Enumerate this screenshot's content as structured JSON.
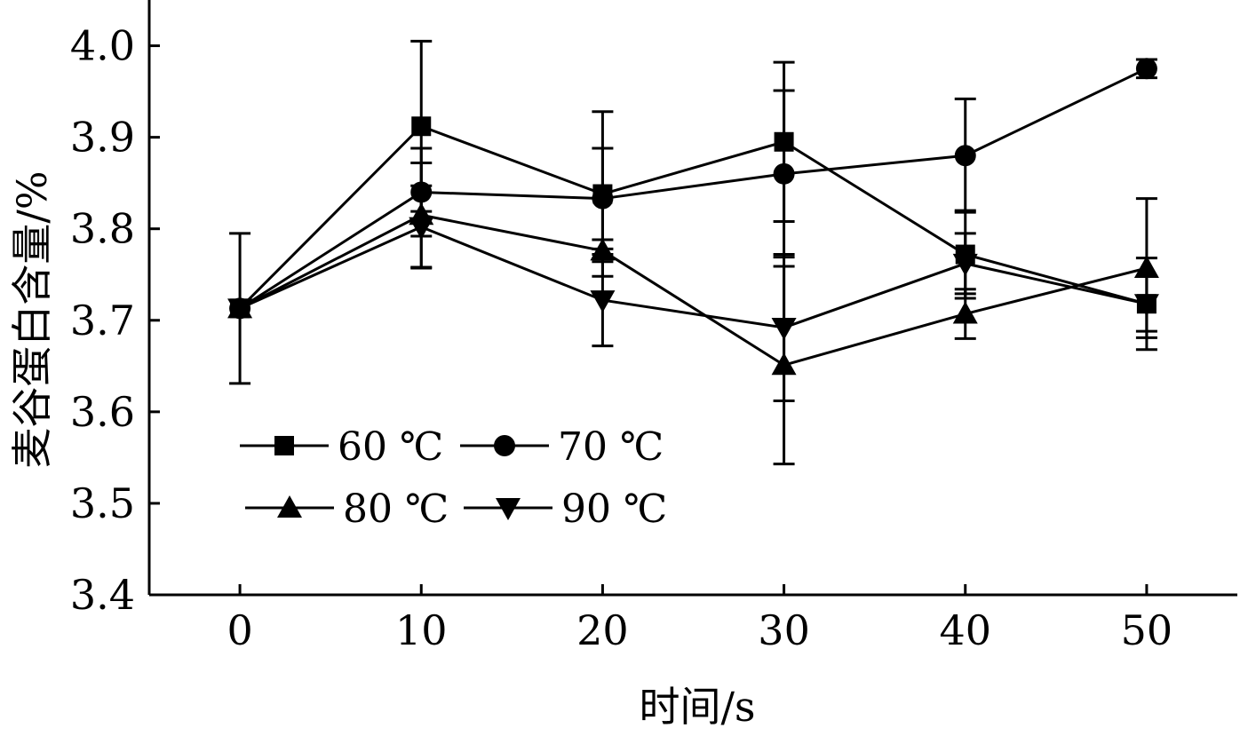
{
  "chart_data": {
    "type": "line",
    "xlabel": "时间/s",
    "ylabel": "麦谷蛋白含量/%",
    "x": [
      0,
      10,
      20,
      30,
      40,
      50
    ],
    "xlim": [
      -5,
      55
    ],
    "ylim": [
      3.4,
      4.05
    ],
    "x_ticks": [
      "0",
      "10",
      "20",
      "30",
      "40",
      "50"
    ],
    "y_ticks": [
      "3.4",
      "3.5",
      "3.6",
      "3.7",
      "3.8",
      "3.9",
      "4.0"
    ],
    "grid": false,
    "legend_position": "bottom-left, 2 rows",
    "series": [
      {
        "name": "60 ℃",
        "marker": "square",
        "color": "#000000",
        "values": [
          3.713,
          3.912,
          3.838,
          3.895,
          3.772,
          3.718
        ],
        "err": [
          0.082,
          0.093,
          0.09,
          0.087,
          0.048,
          0.03
        ]
      },
      {
        "name": "70 ℃",
        "marker": "circle",
        "color": "#000000",
        "values": [
          3.713,
          3.84,
          3.833,
          3.86,
          3.88,
          3.975
        ],
        "err": [
          0.0,
          0.048,
          0.055,
          0.091,
          0.062,
          0.01
        ]
      },
      {
        "name": "80 ℃",
        "marker": "triangle-up",
        "color": "#000000",
        "values": [
          3.713,
          3.815,
          3.776,
          3.651,
          3.707,
          3.757
        ],
        "err": [
          0.0,
          0.057,
          0.012,
          0.108,
          0.027,
          0.076
        ]
      },
      {
        "name": "90 ℃",
        "marker": "triangle-down",
        "color": "#000000",
        "values": [
          3.713,
          3.802,
          3.722,
          3.692,
          3.762,
          3.718
        ],
        "err": [
          0.0,
          0.045,
          0.05,
          0.08,
          0.033,
          0.05
        ]
      }
    ]
  }
}
